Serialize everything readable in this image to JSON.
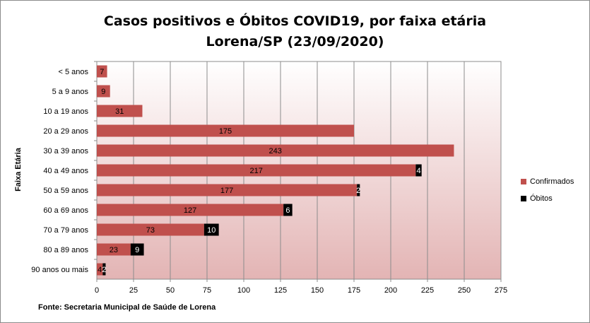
{
  "chart_data": {
    "type": "bar",
    "orientation": "horizontal",
    "title": "Casos positivos e Óbitos COVID19, por faixa etária",
    "subtitle": "Lorena/SP (23/09/2020)",
    "ylabel": "Faixa Etária",
    "xlabel": "",
    "xlim": [
      0,
      275
    ],
    "xticks": [
      0,
      25,
      50,
      75,
      100,
      125,
      150,
      175,
      200,
      225,
      250,
      275
    ],
    "grid": true,
    "legend_position": "right",
    "stacked": true,
    "categories": [
      "< 5 anos",
      "5 a 9 anos",
      "10 a 19 anos",
      "20 a 29 anos",
      "30 a 39 anos",
      "40 a 49 anos",
      "50 a 59 anos",
      "60 a 69 anos",
      "70 a 79 anos",
      "80 a 89 anos",
      "90 anos ou mais"
    ],
    "series": [
      {
        "name": "Confirmados",
        "color": "#c0504d",
        "values": [
          7,
          9,
          31,
          175,
          243,
          217,
          177,
          127,
          73,
          23,
          4
        ]
      },
      {
        "name": "Óbitos",
        "color": "#000000",
        "values": [
          null,
          null,
          null,
          null,
          null,
          4,
          2,
          6,
          10,
          9,
          2
        ]
      }
    ]
  },
  "source": "Fonte: Secretaria Municipal  de Saúde de Lorena"
}
